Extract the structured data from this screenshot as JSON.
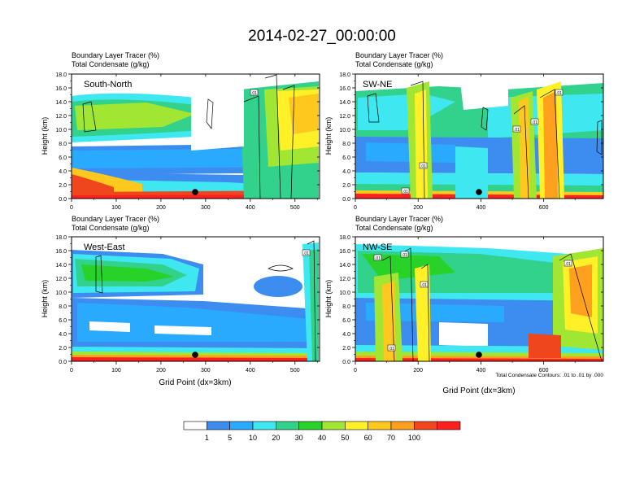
{
  "title": "2014-02-27_00:00:00",
  "variable_labels": {
    "line1": "Boundary Layer Tracer   (%)",
    "line2": "Total Condensate   (g/kg)"
  },
  "shared_y_axis": {
    "label": "Height (km)",
    "ticks": [
      "0.0",
      "2.0",
      "4.0",
      "6.0",
      "8.0",
      "10.0",
      "12.0",
      "14.0",
      "16.0",
      "18.0"
    ],
    "ylim": [
      0,
      18
    ]
  },
  "xlabel": "Grid Point (dx=3km)",
  "contour_note": "Total Condensate Contours: .01 to .01 by .000",
  "contour_label": ".01",
  "colorbar": {
    "levels": [
      "1",
      "5",
      "10",
      "20",
      "30",
      "40",
      "50",
      "60",
      "70",
      "100"
    ],
    "colors": [
      "#ffffff",
      "#3d8cf0",
      "#29aaff",
      "#3fe8f0",
      "#32d28c",
      "#28d228",
      "#a0e632",
      "#fff028",
      "#ffc81e",
      "#ffa01e",
      "#f0461e",
      "#ff2020"
    ]
  },
  "chart_data": [
    {
      "type": "heatmap",
      "name": "South-North",
      "xlim": [
        0,
        555
      ],
      "xticks": [
        "0",
        "100",
        "200",
        "300",
        "400",
        "500"
      ],
      "dot_x": 280
    },
    {
      "type": "heatmap",
      "name": "SW-NE",
      "xlim": [
        0,
        790
      ],
      "xticks": [
        "0",
        "200",
        "400",
        "600"
      ],
      "dot_x": 395
    },
    {
      "type": "heatmap",
      "name": "West-East",
      "xlim": [
        0,
        555
      ],
      "xticks": [
        "0",
        "100",
        "200",
        "300",
        "400",
        "500"
      ],
      "dot_x": 280
    },
    {
      "type": "heatmap",
      "name": "NW-SE",
      "xlim": [
        0,
        790
      ],
      "xticks": [
        "0",
        "200",
        "400",
        "600"
      ],
      "dot_x": 395
    }
  ]
}
